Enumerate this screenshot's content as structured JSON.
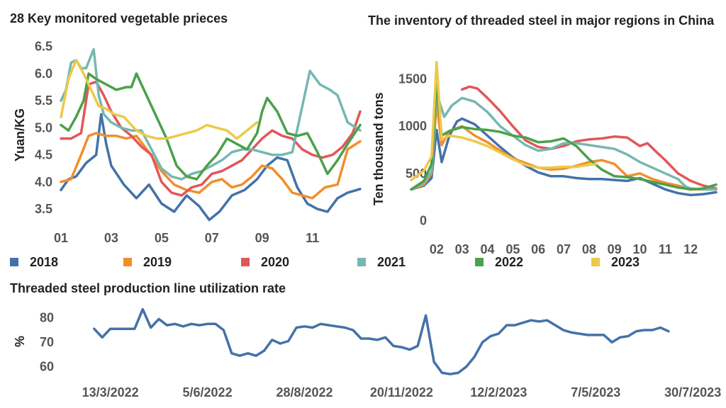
{
  "chart_data": [
    {
      "type": "line",
      "title": "28 Key monitored vegetable prieces",
      "xlabel": "",
      "ylabel": "Yuan/KG",
      "x_ticks": [
        "01",
        "03",
        "05",
        "07",
        "09",
        "11"
      ],
      "y_ticks": [
        "3.5",
        "4.0",
        "4.5",
        "5.0",
        "5.5",
        "6.0",
        "6.5"
      ],
      "ylim": [
        3.2,
        6.6
      ],
      "xlim": [
        1,
        12.9
      ],
      "x_unit": "month",
      "series": [
        {
          "name": "2018",
          "color": "#4472a8",
          "x": [
            1,
            1.3,
            1.6,
            2.0,
            2.4,
            2.6,
            2.8,
            3.0,
            3.5,
            4.0,
            4.5,
            5.0,
            5.5,
            6.0,
            6.5,
            6.9,
            7.3,
            7.8,
            8.3,
            8.8,
            9.2,
            9.6,
            10.0,
            10.4,
            10.8,
            11.2,
            11.6,
            12.0,
            12.4,
            12.9
          ],
          "y": [
            3.85,
            4.05,
            4.1,
            4.35,
            4.5,
            5.25,
            4.7,
            4.3,
            3.95,
            3.7,
            3.95,
            3.6,
            3.45,
            3.75,
            3.55,
            3.3,
            3.45,
            3.75,
            3.85,
            4.05,
            4.3,
            4.45,
            4.4,
            3.9,
            3.6,
            3.5,
            3.45,
            3.7,
            3.8,
            3.87
          ]
        },
        {
          "name": "2019",
          "color": "#f28e2b",
          "x": [
            1,
            1.4,
            1.8,
            2.1,
            2.4,
            2.8,
            3.2,
            3.6,
            4.0,
            4.5,
            5.0,
            5.5,
            6.0,
            6.5,
            7.0,
            7.4,
            7.8,
            8.2,
            8.6,
            9.0,
            9.4,
            9.8,
            10.2,
            10.6,
            11.0,
            11.5,
            12.0,
            12.4,
            12.9
          ],
          "y": [
            4.0,
            4.05,
            4.5,
            4.85,
            4.9,
            4.85,
            4.85,
            4.8,
            4.85,
            4.55,
            4.2,
            3.95,
            3.85,
            3.8,
            4.0,
            4.05,
            3.9,
            3.95,
            4.1,
            4.3,
            4.25,
            4.05,
            3.8,
            3.75,
            3.7,
            3.9,
            3.95,
            4.6,
            4.75
          ]
        },
        {
          "name": "2020",
          "color": "#e15759",
          "x": [
            1,
            1.4,
            1.8,
            2.1,
            2.4,
            2.7,
            3.0,
            3.4,
            3.8,
            4.2,
            4.6,
            5.0,
            5.4,
            5.8,
            6.2,
            6.6,
            7.0,
            7.4,
            7.8,
            8.2,
            8.6,
            9.0,
            9.4,
            9.8,
            10.2,
            10.6,
            11.0,
            11.4,
            11.8,
            12.2,
            12.6,
            12.9
          ],
          "y": [
            4.8,
            4.8,
            4.9,
            5.8,
            5.85,
            5.6,
            5.3,
            5.0,
            4.85,
            4.65,
            4.5,
            4.0,
            3.8,
            3.75,
            3.9,
            3.95,
            4.15,
            4.2,
            4.3,
            4.4,
            4.6,
            4.8,
            4.95,
            4.85,
            4.8,
            4.6,
            4.5,
            4.45,
            4.5,
            4.65,
            4.9,
            5.3
          ]
        },
        {
          "name": "2021",
          "color": "#76b7b2",
          "x": [
            1,
            1.2,
            1.4,
            1.6,
            1.8,
            2.0,
            2.3,
            2.5,
            2.7,
            3.0,
            3.4,
            3.8,
            4.2,
            4.6,
            5.0,
            5.4,
            5.8,
            6.2,
            6.6,
            7.0,
            7.4,
            7.8,
            8.2,
            8.6,
            9.0,
            9.4,
            9.8,
            10.2,
            10.6,
            10.9,
            11.3,
            11.7,
            12.0,
            12.4,
            12.9
          ],
          "y": [
            5.5,
            5.7,
            6.2,
            6.25,
            6.1,
            6.1,
            6.45,
            5.6,
            5.25,
            5.1,
            5.0,
            4.95,
            4.95,
            4.6,
            4.25,
            4.1,
            4.05,
            4.15,
            4.2,
            4.3,
            4.4,
            4.55,
            4.6,
            4.6,
            4.55,
            4.5,
            4.5,
            4.55,
            5.4,
            6.05,
            5.8,
            5.7,
            5.6,
            5.1,
            4.95
          ]
        },
        {
          "name": "2022",
          "color": "#4ba04b",
          "x": [
            1,
            1.3,
            1.6,
            1.9,
            2.1,
            2.4,
            2.8,
            3.2,
            3.6,
            3.8,
            4.0,
            4.4,
            4.8,
            5.2,
            5.6,
            6.0,
            6.4,
            6.8,
            7.2,
            7.6,
            8.0,
            8.4,
            8.8,
            9.0,
            9.2,
            9.6,
            10.0,
            10.4,
            10.8,
            11.2,
            11.6,
            12.0,
            12.4,
            12.9
          ],
          "y": [
            5.05,
            4.95,
            5.2,
            5.5,
            6.0,
            5.9,
            5.8,
            5.7,
            5.75,
            5.75,
            6.0,
            5.6,
            5.2,
            4.8,
            4.3,
            4.1,
            4.05,
            4.3,
            4.5,
            4.8,
            4.7,
            4.6,
            4.9,
            5.3,
            5.55,
            5.3,
            4.9,
            4.85,
            4.9,
            4.55,
            4.15,
            4.4,
            4.7,
            5.05
          ]
        },
        {
          "name": "2023",
          "color": "#edc949",
          "x": [
            1,
            1.3,
            1.6,
            1.9,
            2.2,
            2.5,
            2.8,
            3.1,
            3.5,
            4.0,
            4.4,
            4.8,
            5.2,
            5.6,
            6.0,
            6.4,
            6.8,
            7.2,
            7.6,
            8.0,
            8.4,
            8.8
          ],
          "y": [
            5.2,
            5.9,
            6.25,
            6.0,
            5.7,
            5.4,
            5.35,
            5.25,
            5.2,
            4.95,
            4.85,
            4.8,
            4.8,
            4.85,
            4.9,
            4.95,
            5.05,
            5.0,
            4.95,
            4.8,
            4.95,
            5.1
          ]
        }
      ]
    },
    {
      "type": "line",
      "title": "The inventory of threaded steel in major regions in China",
      "xlabel": "",
      "ylabel": "Ten thousand tons",
      "x_ticks": [
        "02",
        "03",
        "04",
        "05",
        "06",
        "07",
        "08",
        "09",
        "10",
        "11",
        "12"
      ],
      "y_ticks": [
        "0",
        "500",
        "1000",
        "1500"
      ],
      "ylim": [
        -50,
        1700
      ],
      "xlim": [
        1,
        13.0
      ],
      "x_unit": "month",
      "series": [
        {
          "name": "2018",
          "color": "#4472a8",
          "x": [
            1,
            1.5,
            1.8,
            2.0,
            2.2,
            2.5,
            2.8,
            3.0,
            3.5,
            4.0,
            4.5,
            5.0,
            5.5,
            6.0,
            6.5,
            7.0,
            7.5,
            8.0,
            8.5,
            9.0,
            9.5,
            10.0,
            10.5,
            11.0,
            11.5,
            12.0,
            12.5,
            13.0
          ],
          "y": [
            330,
            370,
            450,
            960,
            620,
            900,
            1050,
            1080,
            1020,
            900,
            780,
            670,
            580,
            510,
            470,
            470,
            450,
            440,
            440,
            430,
            420,
            450,
            390,
            330,
            290,
            270,
            280,
            300
          ]
        },
        {
          "name": "2019",
          "color": "#f28e2b",
          "x": [
            1,
            1.5,
            1.8,
            2.0,
            2.2,
            2.5,
            3.0,
            3.5,
            4.0,
            4.5,
            5.0,
            5.5,
            6.0,
            6.5,
            7.0,
            7.5,
            8.0,
            8.5,
            9.0,
            9.5,
            10.0,
            10.5,
            11.0,
            11.5,
            12.0,
            12.5,
            13.0
          ],
          "y": [
            330,
            380,
            500,
            1250,
            800,
            950,
            1000,
            900,
            830,
            740,
            660,
            610,
            560,
            540,
            550,
            580,
            620,
            640,
            600,
            470,
            500,
            440,
            400,
            370,
            330,
            330,
            330
          ]
        },
        {
          "name": "2020",
          "color": "#e15759",
          "x": [
            3.0,
            3.3,
            3.6,
            4.0,
            4.5,
            5.0,
            5.5,
            6.0,
            6.5,
            7.0,
            7.5,
            8.0,
            8.5,
            9.0,
            9.5,
            10.0,
            10.3,
            10.6,
            11.0,
            11.5,
            12.0,
            12.5,
            13.0
          ],
          "y": [
            1390,
            1420,
            1400,
            1300,
            1160,
            1000,
            850,
            780,
            760,
            790,
            840,
            860,
            870,
            890,
            880,
            790,
            820,
            740,
            640,
            500,
            420,
            370,
            340
          ]
        },
        {
          "name": "2021",
          "color": "#76b7b2",
          "x": [
            1,
            1.5,
            1.8,
            2.0,
            2.3,
            2.6,
            3.0,
            3.5,
            4.0,
            4.5,
            5.0,
            5.5,
            6.0,
            6.5,
            7.0,
            7.5,
            8.0,
            8.5,
            9.0,
            9.5,
            10.0,
            10.5,
            11.0,
            11.5,
            11.8,
            12.0,
            12.5,
            13.0
          ],
          "y": [
            330,
            400,
            520,
            1350,
            1100,
            1220,
            1300,
            1260,
            1150,
            1000,
            900,
            800,
            740,
            760,
            820,
            820,
            800,
            780,
            760,
            700,
            620,
            560,
            500,
            440,
            360,
            340,
            330,
            330
          ]
        },
        {
          "name": "2022",
          "color": "#4ba04b",
          "x": [
            1,
            1.5,
            1.8,
            2.0,
            2.2,
            2.5,
            3.0,
            3.5,
            4.0,
            4.5,
            5.0,
            5.5,
            6.0,
            6.5,
            7.0,
            7.5,
            8.0,
            8.5,
            9.0,
            9.5,
            10.0,
            10.5,
            11.0,
            11.5,
            12.0,
            12.5,
            13.0
          ],
          "y": [
            330,
            420,
            600,
            1480,
            900,
            950,
            990,
            970,
            960,
            940,
            900,
            880,
            830,
            840,
            870,
            790,
            650,
            540,
            470,
            460,
            440,
            410,
            380,
            350,
            330,
            340,
            380
          ]
        },
        {
          "name": "2023",
          "color": "#edc949",
          "x": [
            1,
            1.5,
            1.8,
            2.0,
            2.2,
            2.5,
            3.0,
            3.5,
            4.0,
            4.5,
            5.0,
            5.5,
            6.0,
            6.5,
            7.0,
            7.5,
            8.0,
            8.3
          ],
          "y": [
            430,
            530,
            680,
            1680,
            860,
            900,
            880,
            840,
            790,
            720,
            650,
            590,
            560,
            560,
            570,
            570,
            590,
            600
          ]
        }
      ]
    },
    {
      "type": "line",
      "title": "Threaded steel production line utilization rate",
      "xlabel": "",
      "ylabel": "%",
      "x_ticks": [
        "13/3/2022",
        "5/6/2022",
        "28/8/2022",
        "20/11/2022",
        "12/2/2023",
        "7/5/2023",
        "30/7/2023"
      ],
      "y_ticks": [
        "60",
        "70",
        "80"
      ],
      "ylim": [
        55,
        86
      ],
      "x_unit": "weeks since first tick",
      "series": [
        {
          "name": "",
          "color": "#4472a8",
          "x": [
            -2,
            -1,
            0,
            1,
            2,
            3,
            4,
            5,
            6,
            7,
            8,
            9,
            10,
            11,
            12,
            13,
            14,
            15,
            16,
            17,
            18,
            19,
            20,
            21,
            22,
            23,
            24,
            25,
            26,
            27,
            28,
            29,
            30,
            31,
            32,
            33,
            34,
            35,
            36,
            37,
            38,
            39,
            40,
            41,
            42,
            43,
            44,
            45,
            46,
            47,
            48,
            49,
            50,
            51,
            52,
            53,
            54,
            55,
            56,
            57,
            58,
            59,
            60,
            61,
            62,
            63,
            64,
            65,
            66,
            67,
            68,
            69
          ],
          "y": [
            75.5,
            72,
            75.5,
            75.5,
            75.5,
            75.5,
            83.5,
            76,
            79.5,
            77,
            77.5,
            76.5,
            77.5,
            77,
            77.5,
            77.5,
            75,
            65.5,
            64.5,
            65.5,
            64.5,
            66.5,
            71,
            69.5,
            70.5,
            76,
            76.5,
            76,
            77.5,
            77,
            76.5,
            76,
            75,
            71.5,
            71.5,
            71,
            72,
            68.5,
            68,
            67,
            68.5,
            81,
            62,
            57.5,
            57,
            57.5,
            60,
            64,
            70,
            72.5,
            73.5,
            77,
            77,
            78,
            79,
            78.5,
            79,
            77,
            75,
            74,
            73.5,
            73,
            73,
            73,
            70,
            72,
            72.5,
            74.5,
            75,
            75,
            76,
            74.5
          ]
        }
      ]
    }
  ],
  "legend": {
    "items": [
      {
        "label": "2018",
        "color": "#4472a8"
      },
      {
        "label": "2019",
        "color": "#f28e2b"
      },
      {
        "label": "2020",
        "color": "#e15759"
      },
      {
        "label": "2021",
        "color": "#76b7b2"
      },
      {
        "label": "2022",
        "color": "#4ba04b"
      },
      {
        "label": "2023",
        "color": "#edc949"
      }
    ]
  }
}
